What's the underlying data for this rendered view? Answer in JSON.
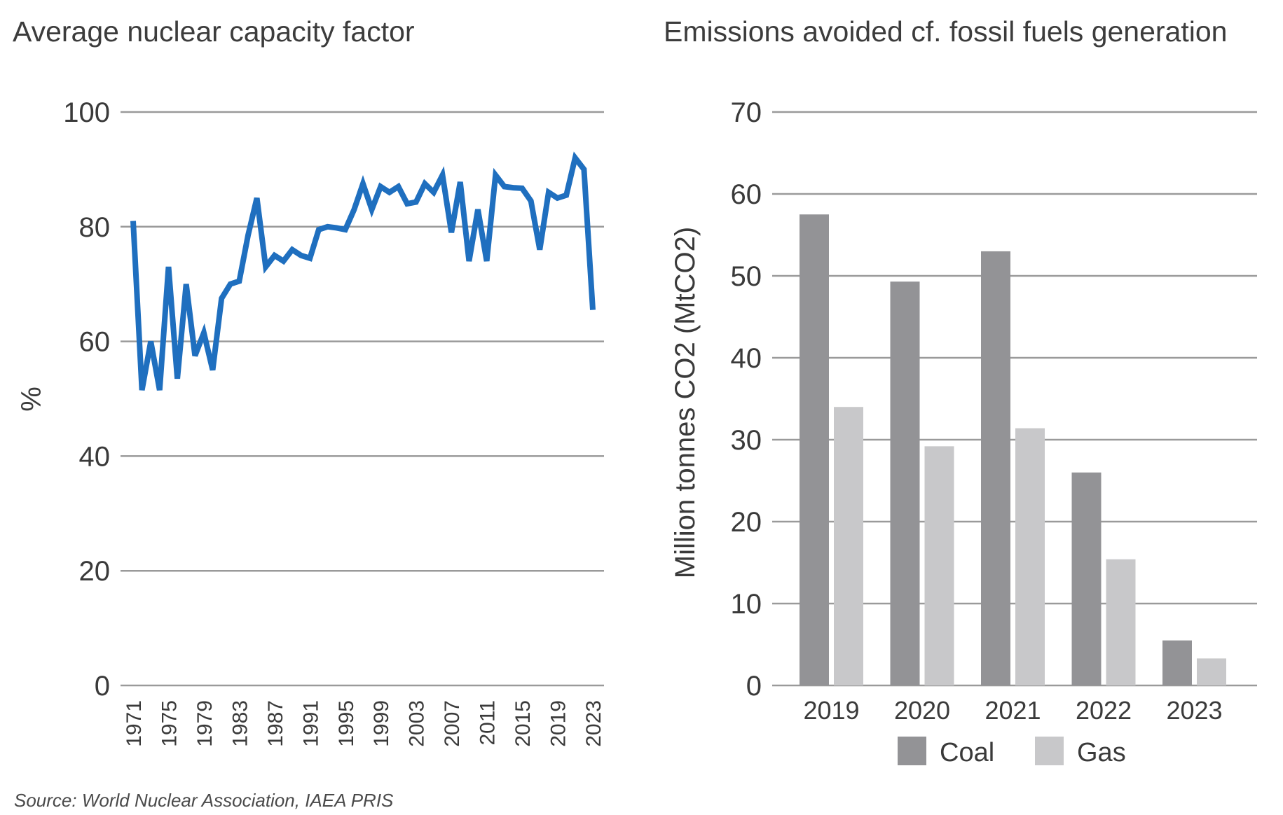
{
  "titles": {
    "left": "Average nuclear capacity factor",
    "right": "Emissions avoided cf. fossil fuels generation"
  },
  "source": "Source: World Nuclear Association, IAEA PRIS",
  "chart_data": [
    {
      "type": "line",
      "title": "Average nuclear capacity factor",
      "xlabel": "",
      "ylabel": "%",
      "ylim": [
        0,
        100
      ],
      "yticks": [
        "0",
        "20",
        "40",
        "60",
        "80",
        "100"
      ],
      "xtick_labels": [
        "1971",
        "1975",
        "1979",
        "1983",
        "1987",
        "1991",
        "1995",
        "1999",
        "2003",
        "2007",
        "2011",
        "2015",
        "2019",
        "2023"
      ],
      "grid": true,
      "color": "#1f6fbf",
      "x": [
        1971,
        1972,
        1973,
        1974,
        1975,
        1976,
        1977,
        1978,
        1979,
        1980,
        1981,
        1982,
        1983,
        1984,
        1985,
        1986,
        1987,
        1988,
        1989,
        1990,
        1991,
        1992,
        1993,
        1994,
        1995,
        1996,
        1997,
        1998,
        1999,
        2000,
        2001,
        2002,
        2003,
        2004,
        2005,
        2006,
        2007,
        2008,
        2009,
        2010,
        2011,
        2012,
        2013,
        2014,
        2015,
        2016,
        2017,
        2018,
        2019,
        2020,
        2021,
        2022,
        2023
      ],
      "values": [
        81,
        51.5,
        60,
        51.5,
        73,
        53.5,
        70,
        57.5,
        61.5,
        55,
        67.5,
        70,
        70.5,
        78.5,
        85,
        73,
        75,
        74,
        76,
        75,
        74.5,
        79.5,
        80,
        79.8,
        79.5,
        83,
        87.5,
        83,
        87,
        86,
        87,
        84,
        84.3,
        87.5,
        86,
        89,
        79,
        87.8,
        74,
        83,
        74,
        89,
        87,
        86.8,
        86.7,
        84.5,
        76,
        86,
        85,
        85.5,
        92,
        90,
        65.5
      ]
    },
    {
      "type": "bar",
      "title": "Emissions avoided cf. fossil fuels generation",
      "xlabel": "",
      "ylabel": "Million tonnes CO2 (MtCO2)",
      "ylim": [
        0,
        70
      ],
      "yticks": [
        "0",
        "10",
        "20",
        "30",
        "40",
        "50",
        "60",
        "70"
      ],
      "grid": true,
      "legend_position": "bottom",
      "categories": [
        "2019",
        "2020",
        "2021",
        "2022",
        "2023"
      ],
      "series": [
        {
          "name": "Coal",
          "color": "#939396",
          "values": [
            57.5,
            49.3,
            53,
            26,
            5.5
          ]
        },
        {
          "name": "Gas",
          "color": "#c8c8ca",
          "values": [
            34,
            29.2,
            31.4,
            15.4,
            3.3
          ]
        }
      ]
    }
  ]
}
